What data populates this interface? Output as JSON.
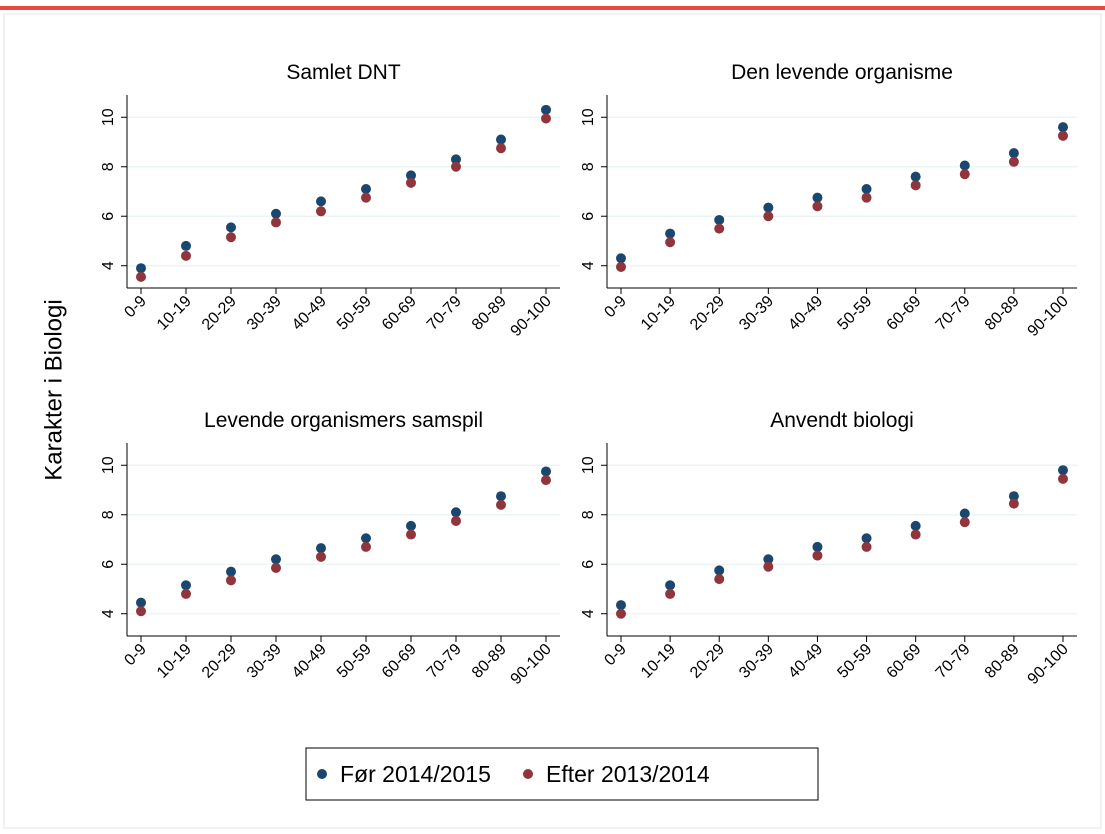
{
  "ylabel": "Karakter i Biologi",
  "chart_data": [
    {
      "type": "scatter",
      "title": "Samlet DNT",
      "categories": [
        "0-9",
        "10-19",
        "20-29",
        "30-39",
        "40-49",
        "50-59",
        "60-69",
        "70-79",
        "80-89",
        "90-100"
      ],
      "series": [
        {
          "name": "Før 2014/2015",
          "color": "#1a476f",
          "values": [
            3.9,
            4.8,
            5.55,
            6.1,
            6.6,
            7.1,
            7.65,
            8.3,
            9.1,
            10.3
          ]
        },
        {
          "name": "Efter 2013/2014",
          "color": "#90353b",
          "values": [
            3.55,
            4.4,
            5.15,
            5.75,
            6.2,
            6.75,
            7.35,
            8.0,
            8.75,
            9.95
          ]
        }
      ],
      "ylim": [
        3.1,
        10.9
      ],
      "yticks": [
        4,
        6,
        8,
        10
      ],
      "grid": true
    },
    {
      "type": "scatter",
      "title": "Den levende organisme",
      "categories": [
        "0-9",
        "10-19",
        "20-29",
        "30-39",
        "40-49",
        "50-59",
        "60-69",
        "70-79",
        "80-89",
        "90-100"
      ],
      "series": [
        {
          "name": "Før 2014/2015",
          "color": "#1a476f",
          "values": [
            4.3,
            5.3,
            5.85,
            6.35,
            6.75,
            7.1,
            7.6,
            8.05,
            8.55,
            9.6
          ]
        },
        {
          "name": "Efter 2013/2014",
          "color": "#90353b",
          "values": [
            3.95,
            4.95,
            5.5,
            6.0,
            6.4,
            6.75,
            7.25,
            7.7,
            8.2,
            9.25
          ]
        }
      ],
      "ylim": [
        3.1,
        10.9
      ],
      "yticks": [
        4,
        6,
        8,
        10
      ],
      "grid": true
    },
    {
      "type": "scatter",
      "title": "Levende organismers samspil",
      "categories": [
        "0-9",
        "10-19",
        "20-29",
        "30-39",
        "40-49",
        "50-59",
        "60-69",
        "70-79",
        "80-89",
        "90-100"
      ],
      "series": [
        {
          "name": "Før 2014/2015",
          "color": "#1a476f",
          "values": [
            4.45,
            5.15,
            5.7,
            6.2,
            6.65,
            7.05,
            7.55,
            8.1,
            8.75,
            9.75
          ]
        },
        {
          "name": "Efter 2013/2014",
          "color": "#90353b",
          "values": [
            4.1,
            4.8,
            5.35,
            5.85,
            6.3,
            6.7,
            7.2,
            7.75,
            8.4,
            9.4
          ]
        }
      ],
      "ylim": [
        3.1,
        10.9
      ],
      "yticks": [
        4,
        6,
        8,
        10
      ],
      "grid": true
    },
    {
      "type": "scatter",
      "title": "Anvendt biologi",
      "categories": [
        "0-9",
        "10-19",
        "20-29",
        "30-39",
        "40-49",
        "50-59",
        "60-69",
        "70-79",
        "80-89",
        "90-100"
      ],
      "series": [
        {
          "name": "Før 2014/2015",
          "color": "#1a476f",
          "values": [
            4.35,
            5.15,
            5.75,
            6.2,
            6.7,
            7.05,
            7.55,
            8.05,
            8.75,
            9.8
          ]
        },
        {
          "name": "Efter 2013/2014",
          "color": "#90353b",
          "values": [
            4.0,
            4.8,
            5.4,
            5.9,
            6.35,
            6.7,
            7.2,
            7.7,
            8.45,
            9.45
          ]
        }
      ],
      "ylim": [
        3.1,
        10.9
      ],
      "yticks": [
        4,
        6,
        8,
        10
      ],
      "grid": true
    }
  ]
}
